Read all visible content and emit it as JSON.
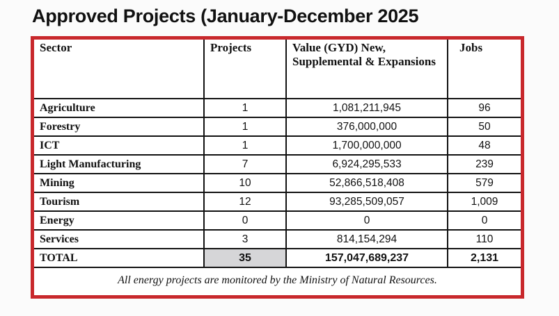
{
  "title": "Approved Projects (January-December 2025",
  "table": {
    "headers": [
      "Sector",
      "Projects",
      "Value (GYD) New, Supplemental & Expansions",
      "Jobs"
    ],
    "rows": [
      {
        "sector": "Agriculture",
        "projects": "1",
        "value": "1,081,211,945",
        "jobs": "96"
      },
      {
        "sector": "Forestry",
        "projects": "1",
        "value": "376,000,000",
        "jobs": "50"
      },
      {
        "sector": "ICT",
        "projects": "1",
        "value": "1,700,000,000",
        "jobs": "48"
      },
      {
        "sector": "Light Manufacturing",
        "projects": "7",
        "value": "6,924,295,533",
        "jobs": "239"
      },
      {
        "sector": "Mining",
        "projects": "10",
        "value": "52,866,518,408",
        "jobs": "579"
      },
      {
        "sector": "Tourism",
        "projects": "12",
        "value": "93,285,509,057",
        "jobs": "1,009"
      },
      {
        "sector": "Energy",
        "projects": "0",
        "value": "0",
        "jobs": "0"
      },
      {
        "sector": "Services",
        "projects": "3",
        "value": "814,154,294",
        "jobs": "110"
      }
    ],
    "total": {
      "sector": "TOTAL",
      "projects": "35",
      "value": "157,047,689,237",
      "jobs": "2,131"
    },
    "note": "All energy projects are monitored by the Ministry of Natural Resources."
  },
  "colors": {
    "frame": "#c8282c",
    "total_highlight": "#d6d6d8"
  }
}
